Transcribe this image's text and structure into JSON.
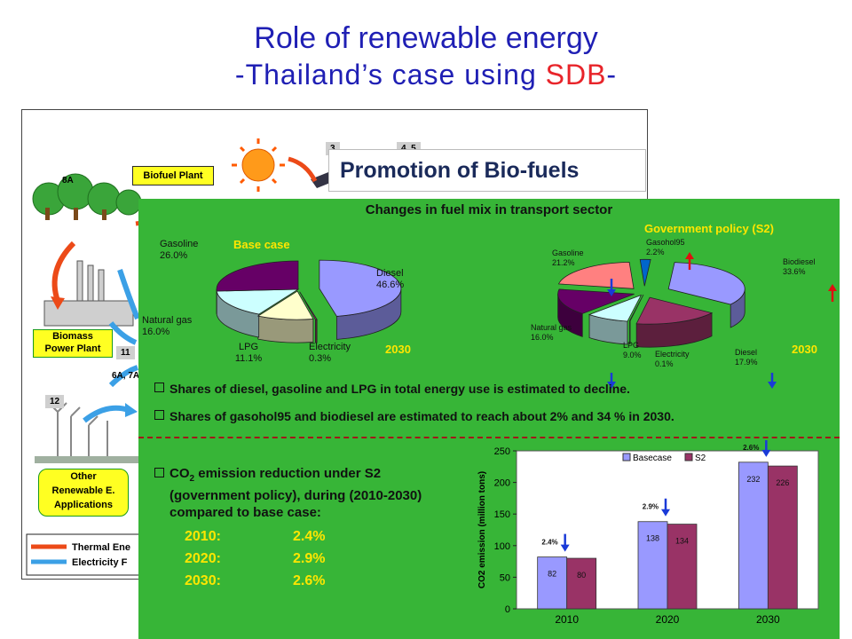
{
  "header": {
    "title_line1": "Role of renewable energy",
    "title_line2_a": "-Thailand’s case using ",
    "title_line2_b": "SDB",
    "title_line2_c": "-"
  },
  "background": {
    "labels": {
      "biofuel_plant": "Biofuel Plant",
      "biomass_power_plant": "Biomass\nPower Plant",
      "other_renewable": "Other\nRenewable E.\nApplications"
    },
    "numbers": {
      "n8a": "8A",
      "n11": "11",
      "n12": "12",
      "n6a7a": "6A, 7A",
      "n3": "3",
      "n45": "4, 5"
    },
    "legend": {
      "thermal": "Thermal Ene",
      "electricity": "Electricity F"
    }
  },
  "promotion_title": "Promotion of Bio-fuels",
  "panel": {
    "title": "Changes in fuel mix in transport sector",
    "base_case_label": "Base case",
    "gov_label": "Government policy (S2)",
    "year_label": "2030",
    "bullets": [
      "Shares of diesel, gasoline and LPG in total energy use is estimated to decline.",
      "Shares of gasohol95 and biodiesel are estimated to reach about 2%  and 34 % in 2030."
    ],
    "co2_text_a": "CO",
    "co2_sub": "2",
    "co2_text_b": " emission reduction under S2",
    "co2_text_c": "(government policy), during (2010-2030)",
    "co2_text_d": "compared to base case:",
    "reductions": [
      {
        "year": "2010:",
        "value": "2.4%"
      },
      {
        "year": "2020:",
        "value": "2.9%"
      },
      {
        "year": "2030:",
        "value": "2.6%"
      }
    ]
  },
  "chart_data": [
    {
      "type": "pie",
      "title": "Base case",
      "slices": [
        {
          "label": "Diesel",
          "value": 46.6,
          "text": "46.6%",
          "color": "#9999ff"
        },
        {
          "label": "Electricity",
          "value": 0.3,
          "text": "0.3%",
          "color": "#993366"
        },
        {
          "label": "LPG",
          "value": 11.1,
          "text": "11.1%",
          "color": "#ffffcc"
        },
        {
          "label": "Natural gas",
          "value": 16.0,
          "text": "16.0%",
          "color": "#ccffff"
        },
        {
          "label": "Gasoline",
          "value": 26.0,
          "text": "26.0%",
          "color": "#660066"
        }
      ]
    },
    {
      "type": "pie",
      "title": "Government policy (S2)",
      "slices": [
        {
          "label": "Biodiesel",
          "value": 33.6,
          "text": "33.6%",
          "color": "#9999ff"
        },
        {
          "label": "Diesel",
          "value": 17.9,
          "text": "17.9%",
          "color": "#993366"
        },
        {
          "label": "Electricity",
          "value": 0.1,
          "text": "0.1%",
          "color": "#ffffcc"
        },
        {
          "label": "LPG",
          "value": 9.0,
          "text": "9.0%",
          "color": "#ccffff"
        },
        {
          "label": "Natural gas",
          "value": 16.0,
          "text": "16.0%",
          "color": "#660066"
        },
        {
          "label": "Gasoline",
          "value": 21.2,
          "text": "21.2%",
          "color": "#ff8080"
        },
        {
          "label": "Gasohol95",
          "value": 2.2,
          "text": "2.2%",
          "color": "#0066cc"
        }
      ]
    },
    {
      "type": "bar",
      "categories": [
        "2010",
        "2020",
        "2030"
      ],
      "series": [
        {
          "name": "Basecase",
          "values": [
            82,
            138,
            232
          ],
          "color": "#9999ff"
        },
        {
          "name": "S2",
          "values": [
            80,
            134,
            226
          ],
          "color": "#993366"
        }
      ],
      "ylabel": "CO2 emission (million tons)",
      "ylim": [
        0,
        250
      ],
      "yticks": [
        0,
        50,
        100,
        150,
        200,
        250
      ],
      "annotations": [
        "2.4%",
        "2.9%",
        "2.6%"
      ],
      "legend": "top"
    }
  ]
}
